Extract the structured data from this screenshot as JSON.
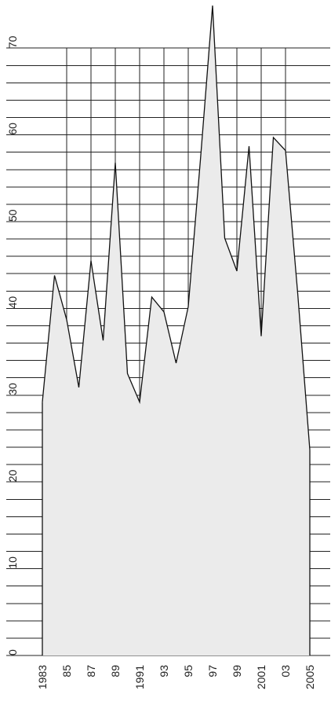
{
  "chart_data": {
    "type": "area",
    "orientation": "rotated-90",
    "title": "",
    "xlabel": "",
    "ylabel": "",
    "x": [
      1983,
      1984,
      1985,
      1986,
      1987,
      1988,
      1989,
      1990,
      1991,
      1992,
      1993,
      1994,
      1995,
      1996,
      1997,
      1998,
      1999,
      2000,
      2001,
      2002,
      2003,
      2004,
      2005
    ],
    "x_tick_values": [
      1983,
      1985,
      1987,
      1989,
      1991,
      1993,
      1995,
      1997,
      1999,
      2001,
      2003,
      2005
    ],
    "x_tick_labels": [
      "1983",
      "85",
      "87",
      "89",
      "1991",
      "93",
      "95",
      "97",
      "99",
      "2001",
      "03",
      "2005"
    ],
    "values": [
      29.2,
      43.8,
      38.7,
      30.9,
      45.5,
      36.3,
      56.8,
      32.5,
      29.2,
      41.3,
      39.6,
      33.7,
      40.2,
      57.1,
      74.9,
      48.1,
      44.3,
      58.7,
      36.8,
      59.7,
      58.2,
      41.8,
      23.7
    ],
    "y_tick_values": [
      0,
      10,
      20,
      30,
      40,
      50,
      60,
      70
    ],
    "y_tick_labels": [
      "0",
      "10",
      "20",
      "30",
      "40",
      "50",
      "60",
      "70"
    ],
    "ylim": [
      0,
      75
    ],
    "grid": true,
    "colors": {
      "fill": "#ebebeb",
      "line": "#111111",
      "grid": "#222222"
    }
  }
}
